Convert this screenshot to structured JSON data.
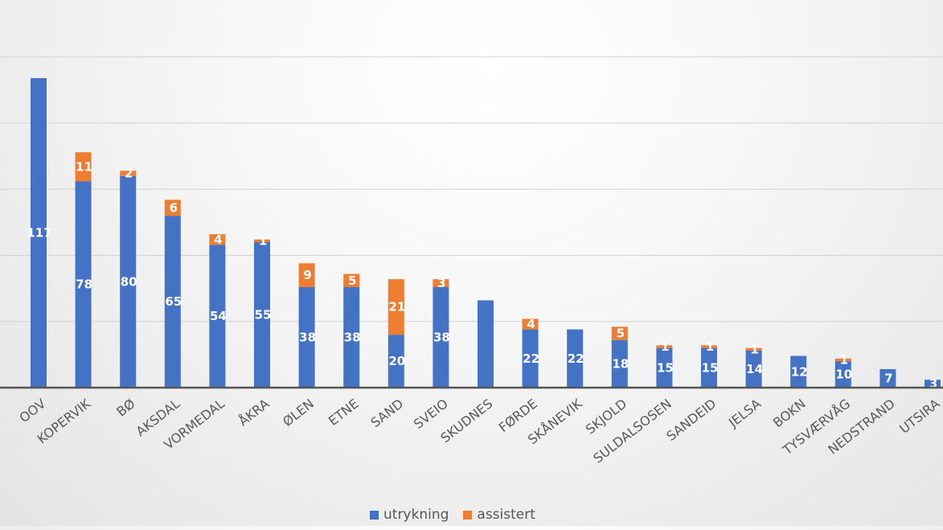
{
  "chart_data": {
    "type": "bar",
    "stacked": true,
    "title": "",
    "xlabel": "",
    "ylabel": "",
    "grid": true,
    "legend_position": "bottom",
    "categories": [
      "OOV",
      "KOPERVIK",
      "BØ",
      "AKSDAL",
      "VORMEDAL",
      "ÅKRA",
      "ØLEN",
      "ETNE",
      "SAND",
      "SVEIO",
      "SKUDNES",
      "FØRDE",
      "SKÅNEVIK",
      "SKJOLD",
      "SULDALSOSEN",
      "SANDEID",
      "JELSA",
      "BOKN",
      "TYSVÆRVÅG",
      "NEDSTRAND",
      "UTSIRA"
    ],
    "series": [
      {
        "name": "utrykning",
        "color": "#4472C4",
        "values": [
          117,
          78,
          80,
          65,
          54,
          55,
          38,
          38,
          20,
          38,
          33,
          22,
          22,
          18,
          15,
          15,
          14,
          12,
          10,
          7,
          3
        ],
        "labels": [
          "117",
          "78",
          "80",
          "65",
          "54",
          "55",
          "38",
          "38",
          "20",
          "38",
          "",
          "22",
          "22",
          "18",
          "15",
          "15",
          "14",
          "12",
          "10",
          "7",
          "3"
        ]
      },
      {
        "name": "assistert",
        "color": "#ED7D31",
        "values": [
          0,
          11,
          2,
          6,
          4,
          1,
          9,
          5,
          21,
          3,
          0,
          4,
          0,
          5,
          1,
          1,
          1,
          0,
          1,
          0,
          0
        ],
        "labels": [
          "",
          "11",
          "2",
          "6",
          "4",
          "1",
          "9",
          "5",
          "21",
          "3",
          "",
          "4",
          "",
          "5",
          "1",
          "1",
          "1",
          "",
          "1",
          "",
          ""
        ]
      }
    ]
  }
}
